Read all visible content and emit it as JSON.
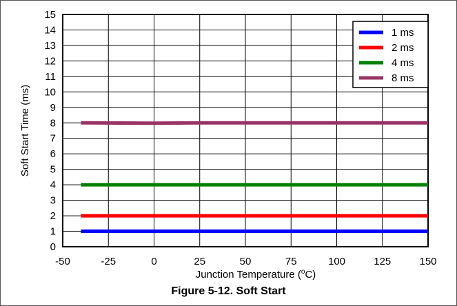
{
  "caption": "Figure 5-12. Soft Start",
  "chart_data": {
    "type": "line",
    "xlabel": "Junction Temperature (",
    "xlabel_sup": "o",
    "xlabel_tail": "C)",
    "ylabel": "Soft Start Time (ms)",
    "xlim": [
      -50,
      150
    ],
    "ylim": [
      0,
      15
    ],
    "xticks": [
      -50,
      -25,
      0,
      25,
      50,
      75,
      100,
      125,
      150
    ],
    "yticks": [
      0,
      1,
      2,
      3,
      4,
      5,
      6,
      7,
      8,
      9,
      10,
      11,
      12,
      13,
      14,
      15
    ],
    "grid": true,
    "legend_position": "top-right",
    "series": [
      {
        "name": "1 ms",
        "color": "#0000ff",
        "x": [
          -40,
          0,
          25,
          50,
          75,
          100,
          125,
          150
        ],
        "y": [
          1,
          1,
          1,
          1,
          1,
          1,
          1,
          1
        ]
      },
      {
        "name": "2 ms",
        "color": "#ff0000",
        "x": [
          -40,
          0,
          25,
          50,
          75,
          100,
          125,
          150
        ],
        "y": [
          2,
          2,
          2,
          2,
          2,
          2,
          2,
          2
        ]
      },
      {
        "name": "4 ms",
        "color": "#008000",
        "x": [
          -40,
          0,
          25,
          50,
          75,
          100,
          125,
          150
        ],
        "y": [
          4,
          4,
          4,
          4,
          4,
          4,
          4,
          4
        ]
      },
      {
        "name": "8 ms",
        "color": "#993366",
        "x": [
          -40,
          0,
          25,
          50,
          75,
          100,
          125,
          150
        ],
        "y": [
          8,
          7.98,
          8,
          8,
          8,
          8,
          8,
          8
        ]
      }
    ]
  }
}
